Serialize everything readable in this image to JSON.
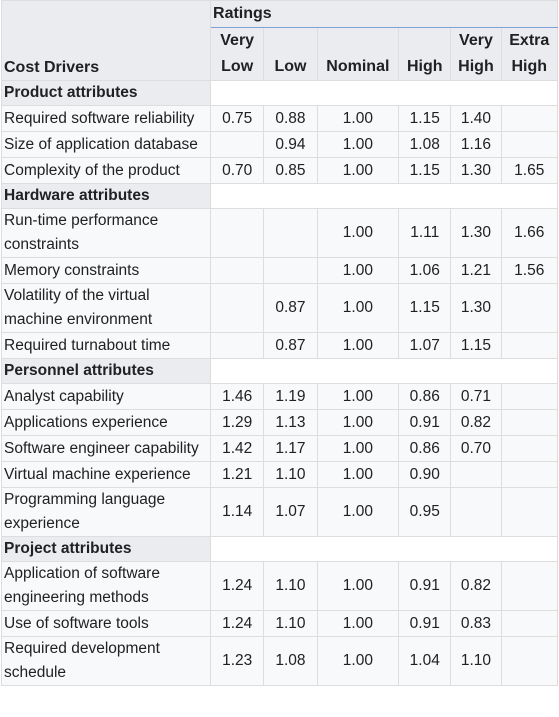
{
  "header": {
    "ratings_label": "Ratings",
    "cost_drivers_label": "Cost Drivers",
    "columns": [
      {
        "line1": "Very",
        "line2": "Low"
      },
      {
        "line1": "",
        "line2": "Low"
      },
      {
        "line1": "",
        "line2": "Nominal"
      },
      {
        "line1": "",
        "line2": "High"
      },
      {
        "line1": "Very",
        "line2": "High"
      },
      {
        "line1": "Extra",
        "line2": "High"
      }
    ]
  },
  "groups": [
    {
      "title": "Product attributes",
      "rows": [
        {
          "name": "Required software reliability",
          "values": [
            "0.75",
            "0.88",
            "1.00",
            "1.15",
            "1.40",
            ""
          ]
        },
        {
          "name": "Size of application database",
          "values": [
            "",
            "0.94",
            "1.00",
            "1.08",
            "1.16",
            ""
          ]
        },
        {
          "name": "Complexity of the product",
          "values": [
            "0.70",
            "0.85",
            "1.00",
            "1.15",
            "1.30",
            "1.65"
          ]
        }
      ]
    },
    {
      "title": "Hardware attributes",
      "rows": [
        {
          "name": "Run-time performance constraints",
          "values": [
            "",
            "",
            "1.00",
            "1.11",
            "1.30",
            "1.66"
          ]
        },
        {
          "name": "Memory constraints",
          "values": [
            "",
            "",
            "1.00",
            "1.06",
            "1.21",
            "1.56"
          ]
        },
        {
          "name": "Volatility of the virtual machine environment",
          "values": [
            "",
            "0.87",
            "1.00",
            "1.15",
            "1.30",
            ""
          ]
        },
        {
          "name": "Required turnabout time",
          "values": [
            "",
            "0.87",
            "1.00",
            "1.07",
            "1.15",
            ""
          ]
        }
      ]
    },
    {
      "title": "Personnel attributes",
      "rows": [
        {
          "name": "Analyst capability",
          "values": [
            "1.46",
            "1.19",
            "1.00",
            "0.86",
            "0.71",
            ""
          ]
        },
        {
          "name": "Applications experience",
          "values": [
            "1.29",
            "1.13",
            "1.00",
            "0.91",
            "0.82",
            ""
          ]
        },
        {
          "name": "Software engineer capability",
          "values": [
            "1.42",
            "1.17",
            "1.00",
            "0.86",
            "0.70",
            ""
          ]
        },
        {
          "name": "Virtual machine experience",
          "values": [
            "1.21",
            "1.10",
            "1.00",
            "0.90",
            "",
            ""
          ]
        },
        {
          "name": "Programming language experience",
          "values": [
            "1.14",
            "1.07",
            "1.00",
            "0.95",
            "",
            ""
          ]
        }
      ]
    },
    {
      "title": "Project attributes",
      "rows": [
        {
          "name": "Application of software engineering methods",
          "values": [
            "1.24",
            "1.10",
            "1.00",
            "0.91",
            "0.82",
            ""
          ]
        },
        {
          "name": "Use of software tools",
          "values": [
            "1.24",
            "1.10",
            "1.00",
            "0.91",
            "0.83",
            ""
          ]
        },
        {
          "name": "Required development schedule",
          "values": [
            "1.23",
            "1.08",
            "1.00",
            "1.04",
            "1.10",
            ""
          ]
        }
      ]
    }
  ]
}
